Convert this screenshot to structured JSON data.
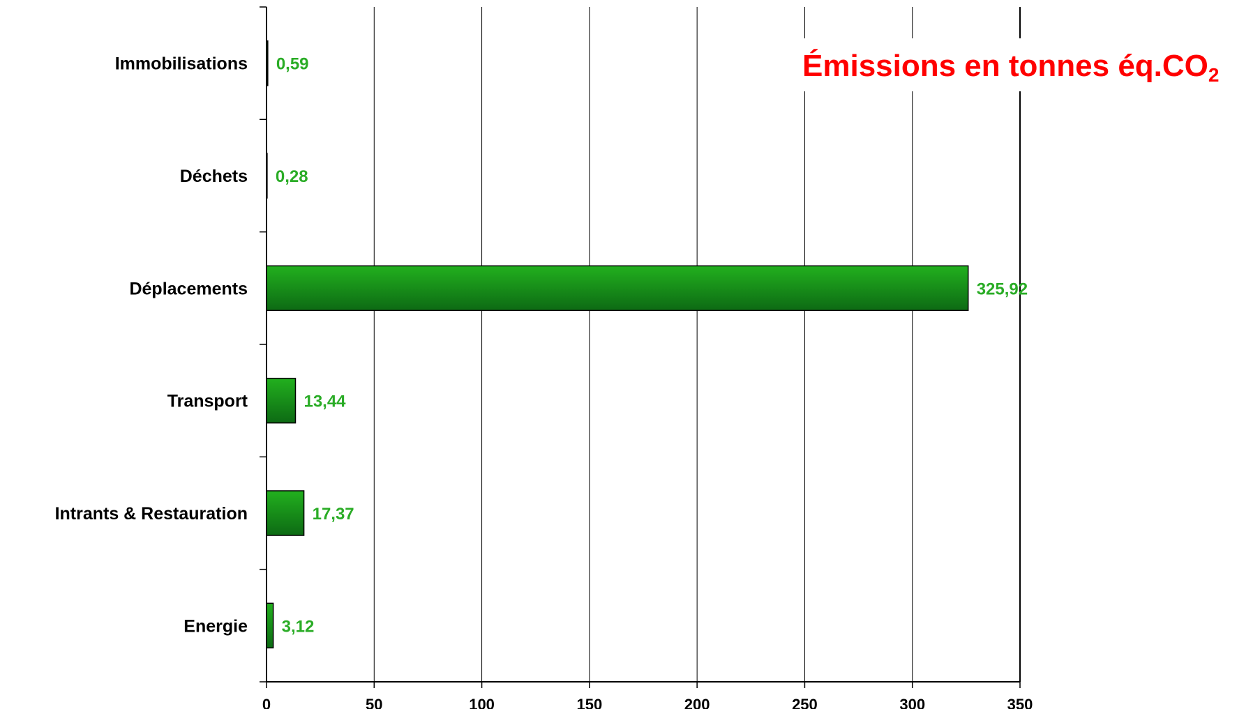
{
  "chart_data": {
    "type": "bar",
    "orientation": "horizontal",
    "title": "Émissions en tonnes éq.CO",
    "title_subscript": "2",
    "categories": [
      "Immobilisations",
      "Déchets",
      "Déplacements",
      "Transport",
      "Intrants & Restauration",
      "Energie"
    ],
    "values": [
      0.59,
      0.28,
      325.92,
      13.44,
      17.37,
      3.12
    ],
    "data_labels": [
      "0,59",
      "0,28",
      "325,92",
      "13,44",
      "17,37",
      "3,12"
    ],
    "x_ticks": [
      0,
      50,
      100,
      150,
      200,
      250,
      300,
      350
    ],
    "xlim": [
      0,
      350
    ],
    "xlabel": "",
    "ylabel": "",
    "grid": true,
    "legend": "none",
    "colors": {
      "bar_top": "#22b01e",
      "bar_bottom": "#0d6a14",
      "bar_stroke": "#000000",
      "data_label": "#2aac26",
      "title": "#ff0000",
      "grid": "#000000"
    }
  }
}
